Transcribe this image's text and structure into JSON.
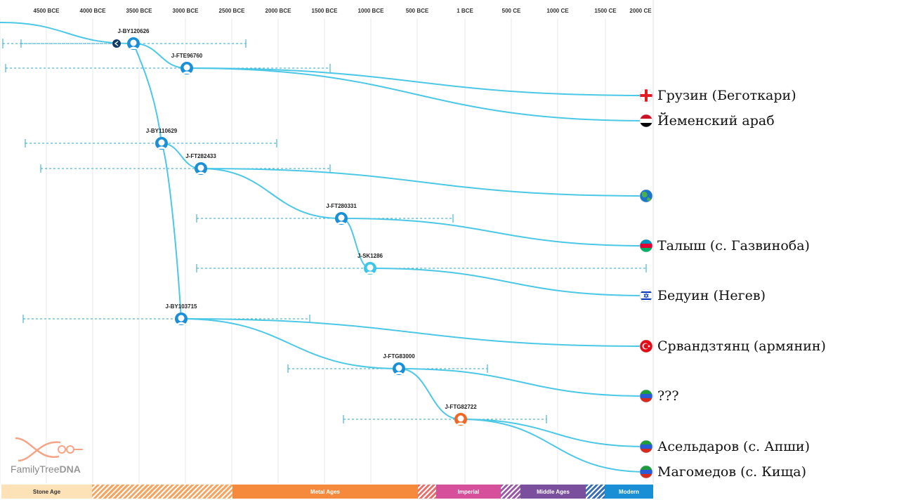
{
  "timeline": {
    "ticks": [
      "4500 BCE",
      "4000 BCE",
      "3500 BCE",
      "3000 BCE",
      "2500 BCE",
      "2000 BCE",
      "1500 BCE",
      "1000 BCE",
      "500 BCE",
      "1 BCE",
      "500 CE",
      "1000 CE",
      "1500 CE",
      "2000 CE"
    ],
    "eras": [
      {
        "name": "Stone Age",
        "color": "#fde2b8",
        "text_color": "#333333"
      },
      {
        "name": "",
        "color": "#f7a460",
        "hatched": true
      },
      {
        "name": "Metal Ages",
        "color": "#f58a3c",
        "text_color": "#ffffff"
      },
      {
        "name": "",
        "color": "#e8706c",
        "hatched": true
      },
      {
        "name": "Imperial",
        "color": "#d64f9a",
        "text_color": "#ffffff"
      },
      {
        "name": "",
        "color": "#9b5aa8",
        "hatched": true
      },
      {
        "name": "Middle Ages",
        "color": "#7a4f9e",
        "text_color": "#ffffff"
      },
      {
        "name": "",
        "color": "#3a6fb5",
        "hatched": true
      },
      {
        "name": "Modern",
        "color": "#1a8fd6",
        "text_color": "#ffffff"
      }
    ]
  },
  "nodes": [
    {
      "id": "J-BY120626",
      "label": "J-BY120626",
      "color": "#1a8fd6"
    },
    {
      "id": "J-FTE96760",
      "label": "J-FTE96760",
      "color": "#1a8fd6"
    },
    {
      "id": "J-BY110629",
      "label": "J-BY110629",
      "color": "#1a8fd6"
    },
    {
      "id": "J-FT282433",
      "label": "J-FT282433",
      "color": "#1a8fd6"
    },
    {
      "id": "J-FT280331",
      "label": "J-FT280331",
      "color": "#1a8fd6"
    },
    {
      "id": "J-SK1286",
      "label": "J-SK1286",
      "color": "#3ec6ea"
    },
    {
      "id": "J-BY103715",
      "label": "J-BY103715",
      "color": "#1a8fd6"
    },
    {
      "id": "J-FTG83000",
      "label": "J-FTG83000",
      "color": "#1a8fd6"
    },
    {
      "id": "J-FTG82722",
      "label": "J-FTG82722",
      "color": "#f26522"
    }
  ],
  "leaves": [
    {
      "label": "Грузин (Беготкари)",
      "flag": "georgia-flag-icon"
    },
    {
      "label": "Йеменский араб",
      "flag": "yemen-flag-icon"
    },
    {
      "label": "",
      "flag": "globe-icon"
    },
    {
      "label": "Талыш (с. Газвиноба)",
      "flag": "azerbaijan-flag-icon"
    },
    {
      "label": "Бедуин (Негев)",
      "flag": "israel-flag-icon"
    },
    {
      "label": "Срвандзтянц (армянин)",
      "flag": "turkey-flag-icon"
    },
    {
      "label": "???",
      "flag": "dagestan-flag-icon"
    },
    {
      "label": "Асельдаров (с. Апши)",
      "flag": "dagestan-flag-icon"
    },
    {
      "label": "Магомедов (с. Кища)",
      "flag": "dagestan-flag-icon"
    }
  ],
  "logo": {
    "brand": "FamilyTree",
    "brand_bold": "DNA"
  },
  "colors": {
    "line": "#4cc8e6",
    "dash": "#2aa7c9",
    "grid": "#e6e9ee"
  }
}
